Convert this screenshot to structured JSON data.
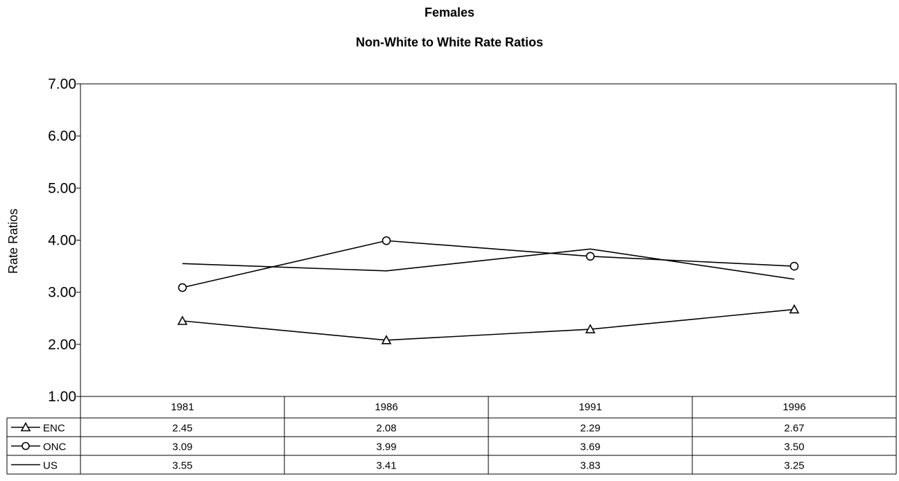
{
  "chart_data": {
    "type": "line",
    "title": "Females",
    "subtitle": "Non-White to White Rate Ratios",
    "ylabel": "Rate Ratios",
    "ylim": [
      1.0,
      7.0
    ],
    "yticks": [
      "1.00",
      "2.00",
      "3.00",
      "4.00",
      "5.00",
      "6.00",
      "7.00"
    ],
    "categories": [
      "1981",
      "1986",
      "1991",
      "1996"
    ],
    "grid": false,
    "legend": "data-table-bottom",
    "series": [
      {
        "name": "ENC",
        "marker": "triangle",
        "values": [
          2.45,
          2.08,
          2.29,
          2.67
        ],
        "labels": [
          "2.45",
          "2.08",
          "2.29",
          "2.67"
        ]
      },
      {
        "name": "ONC",
        "marker": "circle",
        "values": [
          3.09,
          3.99,
          3.69,
          3.5
        ],
        "labels": [
          "3.09",
          "3.99",
          "3.69",
          "3.50"
        ]
      },
      {
        "name": "US",
        "marker": "none",
        "values": [
          3.55,
          3.41,
          3.83,
          3.25
        ],
        "labels": [
          "3.55",
          "3.41",
          "3.83",
          "3.25"
        ]
      }
    ],
    "colors": {
      "line": "#000000",
      "background": "#ffffff"
    }
  }
}
